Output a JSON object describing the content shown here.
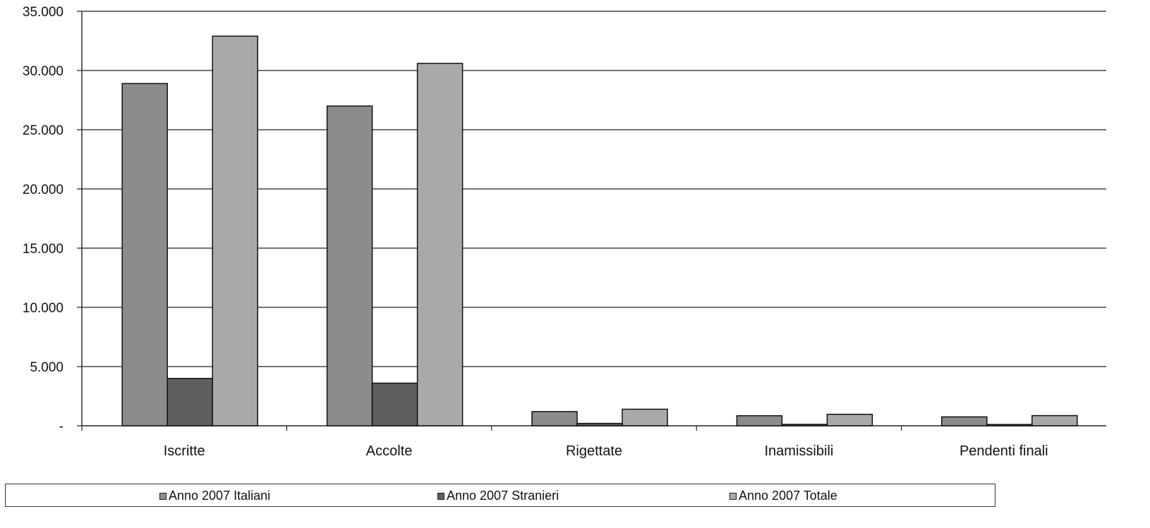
{
  "chart_data": {
    "type": "bar",
    "title": "",
    "xlabel": "",
    "ylabel": "",
    "categories": [
      "Iscritte",
      "Accolte",
      "Rigettate",
      "Inamissibili",
      "Pendenti finali"
    ],
    "series": [
      {
        "name": "Anno 2007 Italiani",
        "values": [
          28900,
          27000,
          1200,
          850,
          750
        ],
        "color": "#8c8c8c"
      },
      {
        "name": "Anno 2007 Stranieri",
        "values": [
          4000,
          3600,
          200,
          120,
          110
        ],
        "color": "#5f5f5f"
      },
      {
        "name": "Anno 2007 Totale",
        "values": [
          32900,
          30600,
          1400,
          970,
          860
        ],
        "color": "#a9a9a9"
      }
    ],
    "ylim": [
      0,
      35000
    ],
    "yticks": [
      0,
      5000,
      10000,
      15000,
      20000,
      25000,
      30000,
      35000
    ],
    "ytick_labels": [
      "-",
      "5.000",
      "10.000",
      "15.000",
      "20.000",
      "25.000",
      "30.000",
      "35.000"
    ],
    "grid": true,
    "legend_position": "bottom"
  }
}
